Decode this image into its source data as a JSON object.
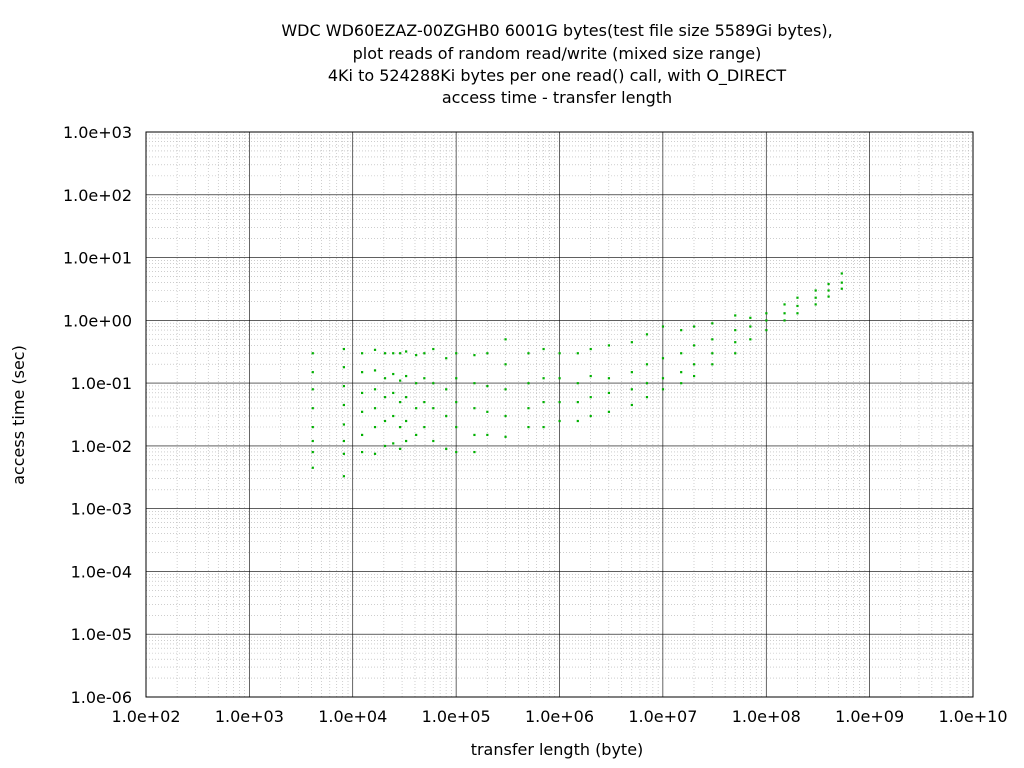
{
  "chart_data": {
    "type": "scatter",
    "title": [
      "WDC WD60EZAZ-00ZGHB0 6001G bytes(test file size 5589Gi bytes),",
      "plot reads of random read/write (mixed size range)",
      "4Ki to 524288Ki bytes per one read() call, with O_DIRECT",
      "access time - transfer length"
    ],
    "xlabel": "transfer length (byte)",
    "ylabel": "access time (sec)",
    "xscale": "log",
    "yscale": "log",
    "xlim": [
      100,
      10000000000
    ],
    "ylim": [
      1e-06,
      1000
    ],
    "xticks": [
      {
        "value": 100,
        "label": "1.0e+02"
      },
      {
        "value": 1000,
        "label": "1.0e+03"
      },
      {
        "value": 10000,
        "label": "1.0e+04"
      },
      {
        "value": 100000,
        "label": "1.0e+05"
      },
      {
        "value": 1000000,
        "label": "1.0e+06"
      },
      {
        "value": 10000000,
        "label": "1.0e+07"
      },
      {
        "value": 100000000,
        "label": "1.0e+08"
      },
      {
        "value": 1000000000,
        "label": "1.0e+09"
      },
      {
        "value": 10000000000,
        "label": "1.0e+10"
      }
    ],
    "yticks": [
      {
        "value": 1000,
        "label": "1.0e+03"
      },
      {
        "value": 100,
        "label": "1.0e+02"
      },
      {
        "value": 10,
        "label": "1.0e+01"
      },
      {
        "value": 1,
        "label": "1.0e+00"
      },
      {
        "value": 0.1,
        "label": "1.0e-01"
      },
      {
        "value": 0.01,
        "label": "1.0e-02"
      },
      {
        "value": 0.001,
        "label": "1.0e-03"
      },
      {
        "value": 0.0001,
        "label": "1.0e-04"
      },
      {
        "value": 1e-05,
        "label": "1.0e-05"
      },
      {
        "value": 1e-06,
        "label": "1.0e-06"
      }
    ],
    "grid": true,
    "series": [
      {
        "color": "#00b000",
        "points": [
          [
            4096,
            0.3
          ],
          [
            4096,
            0.15
          ],
          [
            4096,
            0.08
          ],
          [
            4096,
            0.04
          ],
          [
            4096,
            0.02
          ],
          [
            4096,
            0.012
          ],
          [
            4096,
            0.008
          ],
          [
            4096,
            0.0045
          ],
          [
            8192,
            0.35
          ],
          [
            8192,
            0.18
          ],
          [
            8192,
            0.09
          ],
          [
            8192,
            0.045
          ],
          [
            8192,
            0.022
          ],
          [
            8192,
            0.012
          ],
          [
            8192,
            0.0075
          ],
          [
            8192,
            0.0033
          ],
          [
            12288,
            0.3
          ],
          [
            12288,
            0.15
          ],
          [
            12288,
            0.07
          ],
          [
            12288,
            0.035
          ],
          [
            12288,
            0.015
          ],
          [
            12288,
            0.008
          ],
          [
            16384,
            0.34
          ],
          [
            16384,
            0.16
          ],
          [
            16384,
            0.08
          ],
          [
            16384,
            0.04
          ],
          [
            16384,
            0.02
          ],
          [
            16384,
            0.0075
          ],
          [
            20480,
            0.3
          ],
          [
            20480,
            0.12
          ],
          [
            20480,
            0.06
          ],
          [
            20480,
            0.025
          ],
          [
            20480,
            0.01
          ],
          [
            24576,
            0.3
          ],
          [
            24576,
            0.14
          ],
          [
            24576,
            0.07
          ],
          [
            24576,
            0.03
          ],
          [
            24576,
            0.011
          ],
          [
            28672,
            0.3
          ],
          [
            28672,
            0.11
          ],
          [
            28672,
            0.05
          ],
          [
            28672,
            0.02
          ],
          [
            28672,
            0.009
          ],
          [
            32768,
            0.32
          ],
          [
            32768,
            0.13
          ],
          [
            32768,
            0.06
          ],
          [
            32768,
            0.025
          ],
          [
            32768,
            0.012
          ],
          [
            40960,
            0.28
          ],
          [
            40960,
            0.1
          ],
          [
            40960,
            0.04
          ],
          [
            40960,
            0.015
          ],
          [
            49152,
            0.3
          ],
          [
            49152,
            0.12
          ],
          [
            49152,
            0.05
          ],
          [
            49152,
            0.02
          ],
          [
            60000,
            0.35
          ],
          [
            60000,
            0.1
          ],
          [
            60000,
            0.04
          ],
          [
            60000,
            0.012
          ],
          [
            80000,
            0.25
          ],
          [
            80000,
            0.08
          ],
          [
            80000,
            0.03
          ],
          [
            80000,
            0.009
          ],
          [
            100000,
            0.3
          ],
          [
            100000,
            0.12
          ],
          [
            100000,
            0.05
          ],
          [
            100000,
            0.02
          ],
          [
            100000,
            0.008
          ],
          [
            150000,
            0.28
          ],
          [
            150000,
            0.1
          ],
          [
            150000,
            0.04
          ],
          [
            150000,
            0.015
          ],
          [
            150000,
            0.008
          ],
          [
            200000,
            0.3
          ],
          [
            200000,
            0.09
          ],
          [
            200000,
            0.035
          ],
          [
            200000,
            0.015
          ],
          [
            300000,
            0.5
          ],
          [
            300000,
            0.2
          ],
          [
            300000,
            0.08
          ],
          [
            300000,
            0.03
          ],
          [
            300000,
            0.014
          ],
          [
            500000,
            0.3
          ],
          [
            500000,
            0.1
          ],
          [
            500000,
            0.04
          ],
          [
            500000,
            0.02
          ],
          [
            700000,
            0.35
          ],
          [
            700000,
            0.12
          ],
          [
            700000,
            0.05
          ],
          [
            700000,
            0.02
          ],
          [
            1000000,
            0.3
          ],
          [
            1000000,
            0.12
          ],
          [
            1000000,
            0.05
          ],
          [
            1000000,
            0.025
          ],
          [
            1500000,
            0.3
          ],
          [
            1500000,
            0.1
          ],
          [
            1500000,
            0.05
          ],
          [
            1500000,
            0.025
          ],
          [
            2000000,
            0.35
          ],
          [
            2000000,
            0.13
          ],
          [
            2000000,
            0.06
          ],
          [
            2000000,
            0.03
          ],
          [
            3000000,
            0.4
          ],
          [
            3000000,
            0.12
          ],
          [
            3000000,
            0.07
          ],
          [
            3000000,
            0.035
          ],
          [
            5000000,
            0.45
          ],
          [
            5000000,
            0.15
          ],
          [
            5000000,
            0.08
          ],
          [
            5000000,
            0.045
          ],
          [
            7000000,
            0.6
          ],
          [
            7000000,
            0.2
          ],
          [
            7000000,
            0.1
          ],
          [
            7000000,
            0.06
          ],
          [
            10000000,
            0.8
          ],
          [
            10000000,
            0.25
          ],
          [
            10000000,
            0.12
          ],
          [
            10000000,
            0.08
          ],
          [
            15000000,
            0.7
          ],
          [
            15000000,
            0.3
          ],
          [
            15000000,
            0.15
          ],
          [
            15000000,
            0.1
          ],
          [
            20000000,
            0.8
          ],
          [
            20000000,
            0.4
          ],
          [
            20000000,
            0.2
          ],
          [
            20000000,
            0.13
          ],
          [
            30000000,
            0.9
          ],
          [
            30000000,
            0.5
          ],
          [
            30000000,
            0.3
          ],
          [
            30000000,
            0.2
          ],
          [
            50000000,
            1.2
          ],
          [
            50000000,
            0.7
          ],
          [
            50000000,
            0.45
          ],
          [
            50000000,
            0.3
          ],
          [
            70000000,
            1.1
          ],
          [
            70000000,
            0.8
          ],
          [
            70000000,
            0.5
          ],
          [
            100000000,
            1.3
          ],
          [
            100000000,
            1.0
          ],
          [
            100000000,
            0.7
          ],
          [
            150000000,
            1.8
          ],
          [
            150000000,
            1.3
          ],
          [
            150000000,
            1.0
          ],
          [
            200000000,
            2.3
          ],
          [
            200000000,
            1.7
          ],
          [
            200000000,
            1.3
          ],
          [
            300000000,
            3.0
          ],
          [
            300000000,
            2.3
          ],
          [
            300000000,
            1.8
          ],
          [
            400000000,
            3.8
          ],
          [
            400000000,
            3.0
          ],
          [
            400000000,
            2.4
          ],
          [
            536870912,
            5.6
          ],
          [
            536870912,
            4.0
          ],
          [
            536870912,
            3.2
          ]
        ]
      }
    ]
  }
}
